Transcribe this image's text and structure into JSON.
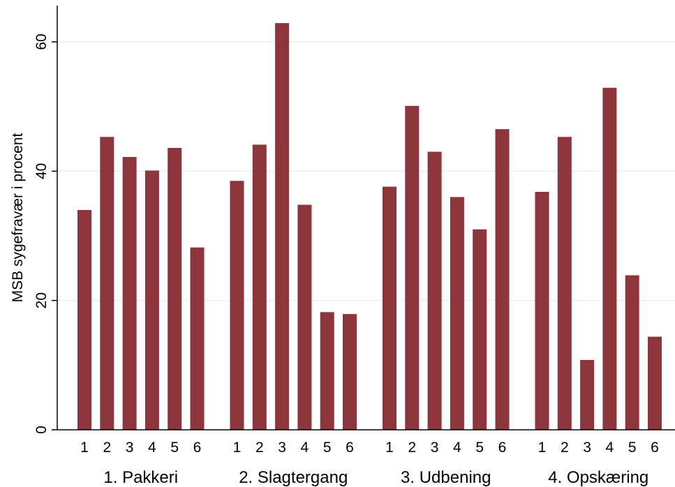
{
  "chart_data": {
    "type": "bar",
    "ylabel": "MSB sygefravær i procent",
    "xlabel": "",
    "ylim": [
      0,
      65
    ],
    "yticks": [
      0,
      20,
      40,
      60
    ],
    "grid": true,
    "bar_color": "#8E353C",
    "grid_color": "#E8EEF1",
    "groups": [
      {
        "label": "1. Pakkeri",
        "categories": [
          "1",
          "2",
          "3",
          "4",
          "5",
          "6"
        ],
        "values": [
          34.0,
          45.3,
          42.2,
          40.1,
          43.6,
          28.2
        ]
      },
      {
        "label": "2. Slagtergang",
        "categories": [
          "1",
          "2",
          "3",
          "4",
          "5",
          "6"
        ],
        "values": [
          38.5,
          44.1,
          62.9,
          34.8,
          18.2,
          17.9
        ]
      },
      {
        "label": "3. Udbening",
        "categories": [
          "1",
          "2",
          "3",
          "4",
          "5",
          "6"
        ],
        "values": [
          37.6,
          50.1,
          43.0,
          36.0,
          31.0,
          46.5
        ]
      },
      {
        "label": "4. Opskæring",
        "categories": [
          "1",
          "2",
          "3",
          "4",
          "5",
          "6"
        ],
        "values": [
          36.8,
          45.3,
          10.8,
          52.9,
          23.9,
          14.4
        ]
      }
    ]
  }
}
